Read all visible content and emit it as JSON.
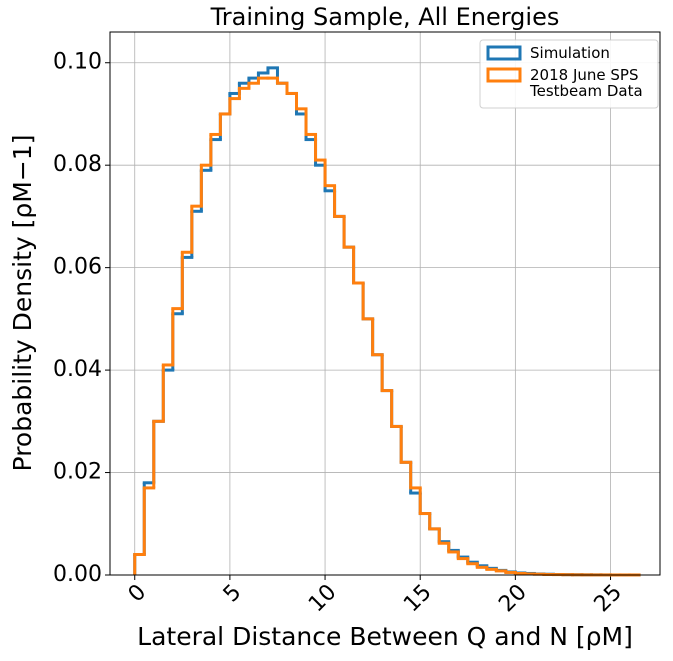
{
  "chart_data": {
    "type": "histogram",
    "title": "Training Sample, All Energies",
    "x_label": "Lateral Distance Between Q and N [ρM]",
    "y_label": "Probability Density [ρM−1]",
    "bins": [
      0,
      0.5,
      1,
      1.5,
      2,
      2.5,
      3,
      3.5,
      4,
      4.5,
      5,
      5.5,
      6,
      6.5,
      7,
      7.5,
      8,
      8.5,
      9,
      9.5,
      10,
      10.5,
      11,
      11.5,
      12,
      12.5,
      13,
      13.5,
      14,
      14.5,
      15,
      15.5,
      16,
      16.5,
      17,
      17.5,
      18,
      18.5,
      19,
      19.5,
      20,
      20.5,
      21,
      21.5,
      22,
      22.5,
      23,
      23.5,
      24,
      24.5,
      25,
      25.5,
      26,
      26.5
    ],
    "series": [
      {
        "name": "Simulation",
        "color": "#1f77b4",
        "values": [
          0.004,
          0.018,
          0.03,
          0.04,
          0.051,
          0.062,
          0.071,
          0.079,
          0.085,
          0.09,
          0.094,
          0.096,
          0.097,
          0.098,
          0.099,
          0.096,
          0.094,
          0.09,
          0.085,
          0.08,
          0.075,
          0.07,
          0.064,
          0.057,
          0.05,
          0.043,
          0.036,
          0.029,
          0.022,
          0.016,
          0.012,
          0.009,
          0.0065,
          0.0048,
          0.0035,
          0.0025,
          0.0018,
          0.0013,
          0.0009,
          0.0006,
          0.0004,
          0.0003,
          0.0002,
          0.00015,
          0.0001,
          7e-05,
          5e-05,
          3e-05,
          2e-05,
          1e-05,
          0,
          0,
          0
        ]
      },
      {
        "name": "2018 June SPS\nTestbeam Data",
        "color": "#ff7f0e",
        "values": [
          0.004,
          0.017,
          0.03,
          0.041,
          0.052,
          0.063,
          0.072,
          0.08,
          0.086,
          0.09,
          0.093,
          0.095,
          0.096,
          0.097,
          0.097,
          0.096,
          0.094,
          0.091,
          0.086,
          0.081,
          0.076,
          0.07,
          0.064,
          0.057,
          0.05,
          0.043,
          0.036,
          0.029,
          0.022,
          0.017,
          0.012,
          0.009,
          0.0062,
          0.0045,
          0.0032,
          0.0022,
          0.0015,
          0.0011,
          0.0008,
          0.0005,
          0.0003,
          0.0002,
          0.00015,
          0.0001,
          8e-05,
          6e-05,
          4e-05,
          3e-05,
          2e-05,
          2e-05,
          1e-05,
          1e-05,
          1e-05
        ]
      }
    ],
    "xlim": [
      -1.3,
      27.6
    ],
    "ylim": [
      0,
      0.106
    ],
    "xticks": [
      0,
      5,
      10,
      15,
      20,
      25
    ],
    "yticks": [
      {
        "value": 0,
        "label": "0.00"
      },
      {
        "value": 0.02,
        "label": "0.02"
      },
      {
        "value": 0.04,
        "label": "0.04"
      },
      {
        "value": 0.06,
        "label": "0.06"
      },
      {
        "value": 0.08,
        "label": "0.08"
      },
      {
        "value": 0.1,
        "label": "0.10"
      }
    ],
    "grid": true,
    "legend": "upper right"
  }
}
